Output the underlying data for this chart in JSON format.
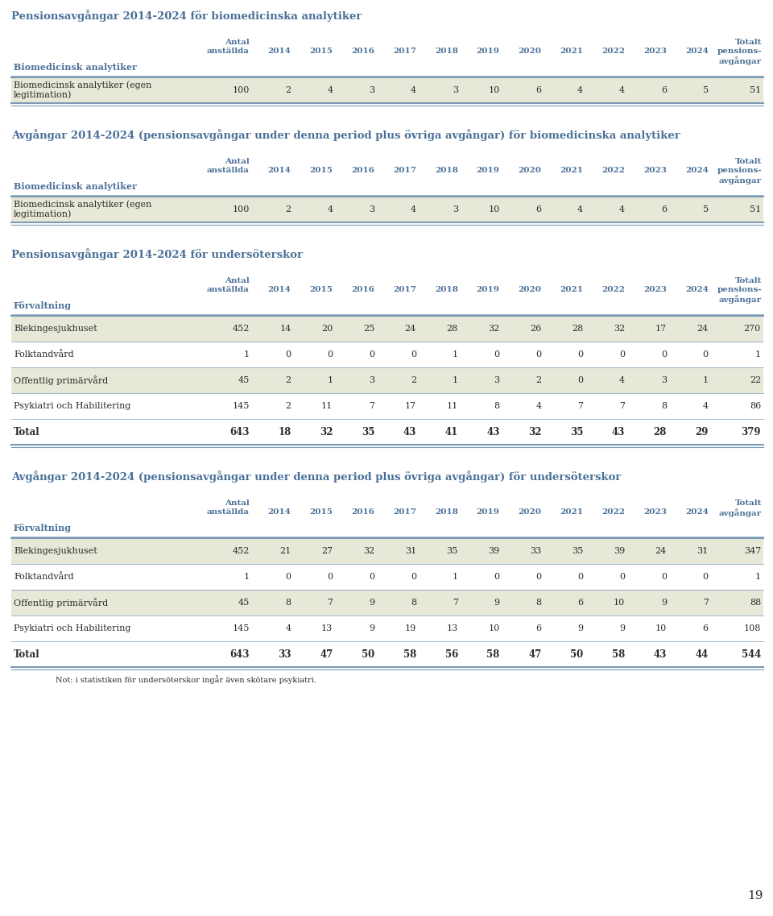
{
  "page_bg": "#ffffff",
  "title_color": "#4a7098",
  "header_color": "#4a7098",
  "row_bg_odd": "#e8e8d8",
  "text_color_dark": "#2b2b2b",
  "line_color": "#7a9ab5",
  "section1_title": "Pensionsavgångar 2014-2024 för biomedicinska analytiker",
  "table1_col_header_left": "Biomedicinsk analytiker",
  "table1_rows": [
    [
      "Biomedicinsk analytiker (egen\nlegitimation)",
      "100",
      "2",
      "4",
      "3",
      "4",
      "3",
      "10",
      "6",
      "4",
      "4",
      "6",
      "5",
      "51"
    ]
  ],
  "section2_title": "Avgångar 2014-2024 (pensionsavgångar under denna period plus övriga avgångar) för biomedicinska analytiker",
  "table2_col_header_left": "Biomedicinsk analytiker",
  "table2_col_headers_last": "Totalt\npensions-\navgångar",
  "table2_rows": [
    [
      "Biomedicinsk analytiker (egen\nlegitimation)",
      "100",
      "2",
      "4",
      "3",
      "4",
      "3",
      "10",
      "6",
      "4",
      "4",
      "6",
      "5",
      "51"
    ]
  ],
  "section3_title": "Pensionsavgångar 2014-2024 för undersöterskor",
  "table3_col_header_left": "Förvaltning",
  "table3_rows": [
    [
      "Blekingesjukhuset",
      "452",
      "14",
      "20",
      "25",
      "24",
      "28",
      "32",
      "26",
      "28",
      "32",
      "17",
      "24",
      "270"
    ],
    [
      "Folktandvård",
      "1",
      "0",
      "0",
      "0",
      "0",
      "1",
      "0",
      "0",
      "0",
      "0",
      "0",
      "0",
      "1"
    ],
    [
      "Offentlig primärvård",
      "45",
      "2",
      "1",
      "3",
      "2",
      "1",
      "3",
      "2",
      "0",
      "4",
      "3",
      "1",
      "22"
    ],
    [
      "Psykiatri och Habilitering",
      "145",
      "2",
      "11",
      "7",
      "17",
      "11",
      "8",
      "4",
      "7",
      "7",
      "8",
      "4",
      "86"
    ]
  ],
  "table3_total": [
    "Total",
    "643",
    "18",
    "32",
    "35",
    "43",
    "41",
    "43",
    "32",
    "35",
    "43",
    "28",
    "29",
    "379"
  ],
  "section4_title": "Avgångar 2014-2024 (pensionsavgångar under denna period plus övriga avgångar) för undersöterskor",
  "table4_col_header_left": "Förvaltning",
  "table4_rows": [
    [
      "Blekingesjukhuset",
      "452",
      "21",
      "27",
      "32",
      "31",
      "35",
      "39",
      "33",
      "35",
      "39",
      "24",
      "31",
      "347"
    ],
    [
      "Folktandvård",
      "1",
      "0",
      "0",
      "0",
      "0",
      "1",
      "0",
      "0",
      "0",
      "0",
      "0",
      "0",
      "1"
    ],
    [
      "Offentlig primärvård",
      "45",
      "8",
      "7",
      "9",
      "8",
      "7",
      "9",
      "8",
      "6",
      "10",
      "9",
      "7",
      "88"
    ],
    [
      "Psykiatri och Habilitering",
      "145",
      "4",
      "13",
      "9",
      "19",
      "13",
      "10",
      "6",
      "9",
      "9",
      "10",
      "6",
      "108"
    ]
  ],
  "table4_total": [
    "Total",
    "643",
    "33",
    "47",
    "50",
    "58",
    "56",
    "58",
    "47",
    "50",
    "58",
    "43",
    "44",
    "544"
  ],
  "table4_note": "Not: i statistiken för undersöterskor ingår även skötare psykiatri.",
  "years": [
    "2014",
    "2015",
    "2016",
    "2017",
    "2018",
    "2019",
    "2020",
    "2021",
    "2022",
    "2023",
    "2024"
  ],
  "page_number": "19"
}
